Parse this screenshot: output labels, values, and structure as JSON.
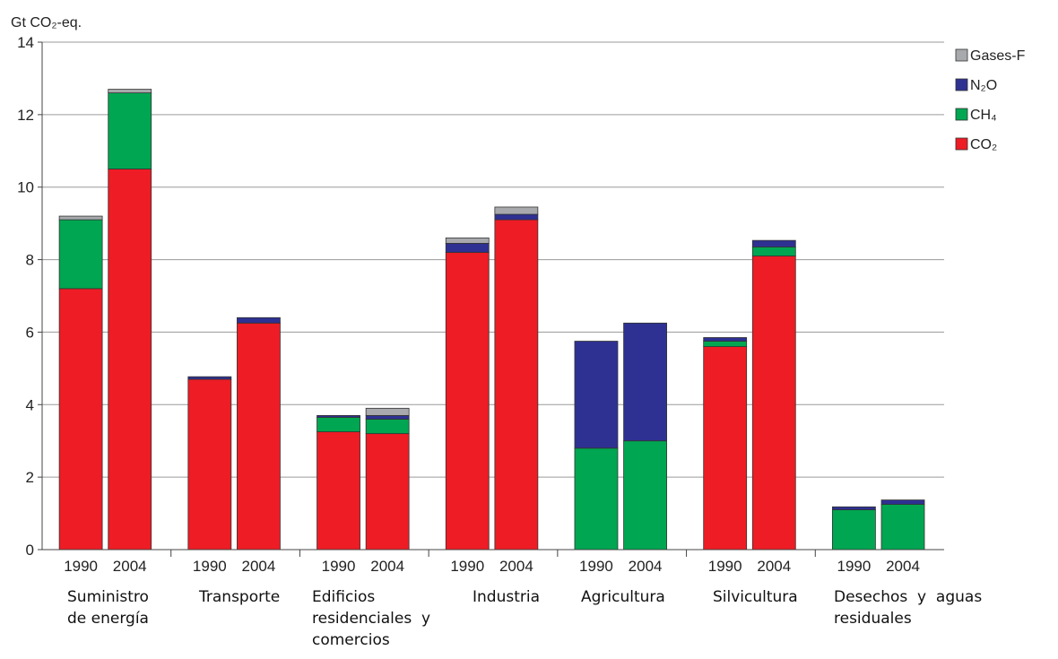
{
  "chart_data": {
    "type": "bar",
    "stacked": true,
    "ylabel": "Gt CO₂-eq.",
    "ylim": [
      0,
      14
    ],
    "yticks": [
      0,
      2,
      4,
      6,
      8,
      10,
      12,
      14
    ],
    "grid": true,
    "legend_position": "top-right",
    "groups": [
      {
        "label_lines": [
          "Suministro",
          "de energía"
        ]
      },
      {
        "label_lines": [
          "Transporte"
        ]
      },
      {
        "label_lines": [
          "Edificios",
          "residenciales  y",
          "comercios"
        ]
      },
      {
        "label_lines": [
          "Industria"
        ]
      },
      {
        "label_lines": [
          "Agricultura"
        ]
      },
      {
        "label_lines": [
          "Silvicultura"
        ]
      },
      {
        "label_lines": [
          "Desechos  y  aguas",
          "residuales"
        ]
      }
    ],
    "years": [
      "1990",
      "2004"
    ],
    "series": [
      {
        "name": "CO₂",
        "color": "#ee1c25",
        "values": [
          [
            7.2,
            10.5
          ],
          [
            4.7,
            6.25
          ],
          [
            3.25,
            3.2
          ],
          [
            8.2,
            9.1
          ],
          [
            0,
            0
          ],
          [
            5.6,
            8.1
          ],
          [
            0,
            0
          ]
        ]
      },
      {
        "name": "CH₄",
        "color": "#00a651",
        "values": [
          [
            1.9,
            2.1
          ],
          [
            0,
            0
          ],
          [
            0.4,
            0.4
          ],
          [
            0,
            0
          ],
          [
            2.8,
            3.0
          ],
          [
            0.15,
            0.25
          ],
          [
            1.1,
            1.25
          ]
        ]
      },
      {
        "name": "N₂O",
        "color": "#2e3192",
        "values": [
          [
            0,
            0
          ],
          [
            0.07,
            0.15
          ],
          [
            0.05,
            0.1
          ],
          [
            0.25,
            0.15
          ],
          [
            2.95,
            3.25
          ],
          [
            0.1,
            0.18
          ],
          [
            0.08,
            0.12
          ]
        ]
      },
      {
        "name": "Gases-F",
        "color": "#a7a9ac",
        "values": [
          [
            0.1,
            0.1
          ],
          [
            0,
            0
          ],
          [
            0,
            0.2
          ],
          [
            0.15,
            0.2
          ],
          [
            0,
            0
          ],
          [
            0,
            0
          ],
          [
            0,
            0
          ]
        ]
      }
    ]
  }
}
